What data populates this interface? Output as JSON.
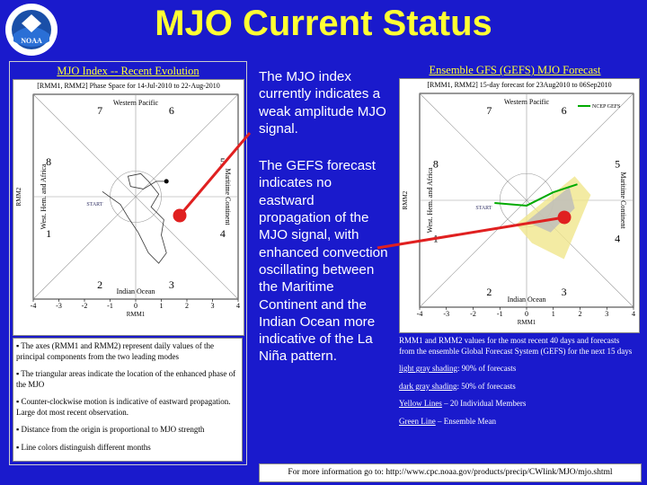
{
  "logo_text": "NOAA",
  "title": "MJO Current Status",
  "left_panel": {
    "heading": "MJO Index -- Recent Evolution",
    "plot": {
      "title": "[RMM1, RMM2] Phase Space for 14-Jul-2010 to 22-Aug-2010",
      "x_label": "RMM1",
      "y_label": "RMM2",
      "xlim": [
        -4,
        4
      ],
      "xticks": [
        -4,
        -3,
        -2,
        -1,
        0,
        1,
        2,
        3,
        4
      ],
      "phases": [
        "1",
        "2",
        "3",
        "4",
        "5",
        "6",
        "7",
        "8"
      ],
      "regions": {
        "top": "Western Pacific",
        "bottom": "Indian Ocean",
        "right": "Maritime Continent",
        "left": "West. Hem. and Africa"
      },
      "start_label": "START"
    },
    "notes": [
      "The axes (RMM1 and RMM2) represent daily values of the principal components from the two leading modes",
      "The triangular areas indicate the location of the enhanced phase of the MJO",
      "Counter-clockwise motion is indicative of eastward propagation. Large dot most recent observation.",
      "Distance from the origin is proportional to MJO strength",
      "Line colors distinguish different months"
    ]
  },
  "middle_text": [
    "The MJO index currently indicates a weak amplitude MJO signal.",
    "The GEFS forecast indicates no eastward propagation of the MJO signal, with enhanced convection oscillating between the Maritime Continent and the Indian Ocean more indicative of the La Niña pattern."
  ],
  "right_panel": {
    "heading": "Ensemble GFS (GEFS) MJO Forecast",
    "plot": {
      "title": "[RMM1, RMM2] 15-day forecast for 23Aug2010 to 06Sep2010",
      "x_label": "RMM1",
      "y_label": "RMM2",
      "xlim": [
        -4,
        4
      ],
      "xticks": [
        -4,
        -3,
        -2,
        -1,
        0,
        1,
        2,
        3,
        4
      ],
      "phases": [
        "1",
        "2",
        "3",
        "4",
        "5",
        "6",
        "7",
        "8"
      ],
      "regions": {
        "top": "Western Pacific",
        "bottom": "Indian Ocean",
        "right": "Maritime Continent",
        "left": "West. Hem. and Africa"
      },
      "start_label": "START",
      "legend": "NCEP GEFS"
    },
    "intro": "RMM1 and RMM2 values for the most recent 40 days and forecasts from the ensemble Global Forecast System (GEFS) for the next 15 days",
    "notes": [
      {
        "term": "light gray shading",
        "text": ": 90% of forecasts"
      },
      {
        "term": "dark gray shading",
        "text": ": 50% of forecasts"
      },
      {
        "term": "Yellow Lines",
        "text": " – 20 Individual Members"
      },
      {
        "term": "Green Line",
        "text": " – Ensemble Mean"
      }
    ]
  },
  "footer": "For more information go to: http://www.cpc.noaa.gov/products/precip/CWlink/MJO/mjo.shtml"
}
